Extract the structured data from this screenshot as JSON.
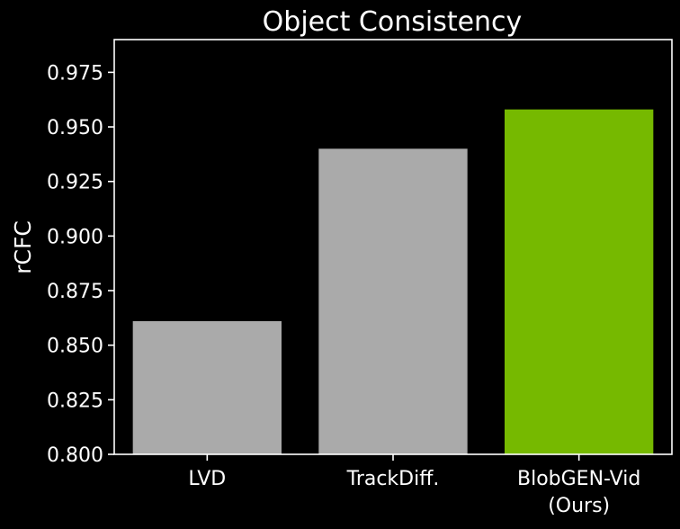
{
  "chart_data": {
    "type": "bar",
    "title": "Object Consistency",
    "xlabel": "",
    "ylabel": "rCFC",
    "categories": [
      "LVD",
      "TrackDiff.",
      "BlobGEN-Vid\n(Ours)"
    ],
    "values": [
      0.861,
      0.94,
      0.958
    ],
    "bar_colors": [
      "#aaaaaa",
      "#aaaaaa",
      "#76b900"
    ],
    "ylim": [
      0.8,
      0.99
    ],
    "yticks": [
      "0.800",
      "0.825",
      "0.850",
      "0.875",
      "0.900",
      "0.925",
      "0.950",
      "0.975"
    ],
    "grid": false,
    "background": "#000000",
    "foreground": "#ffffff"
  }
}
